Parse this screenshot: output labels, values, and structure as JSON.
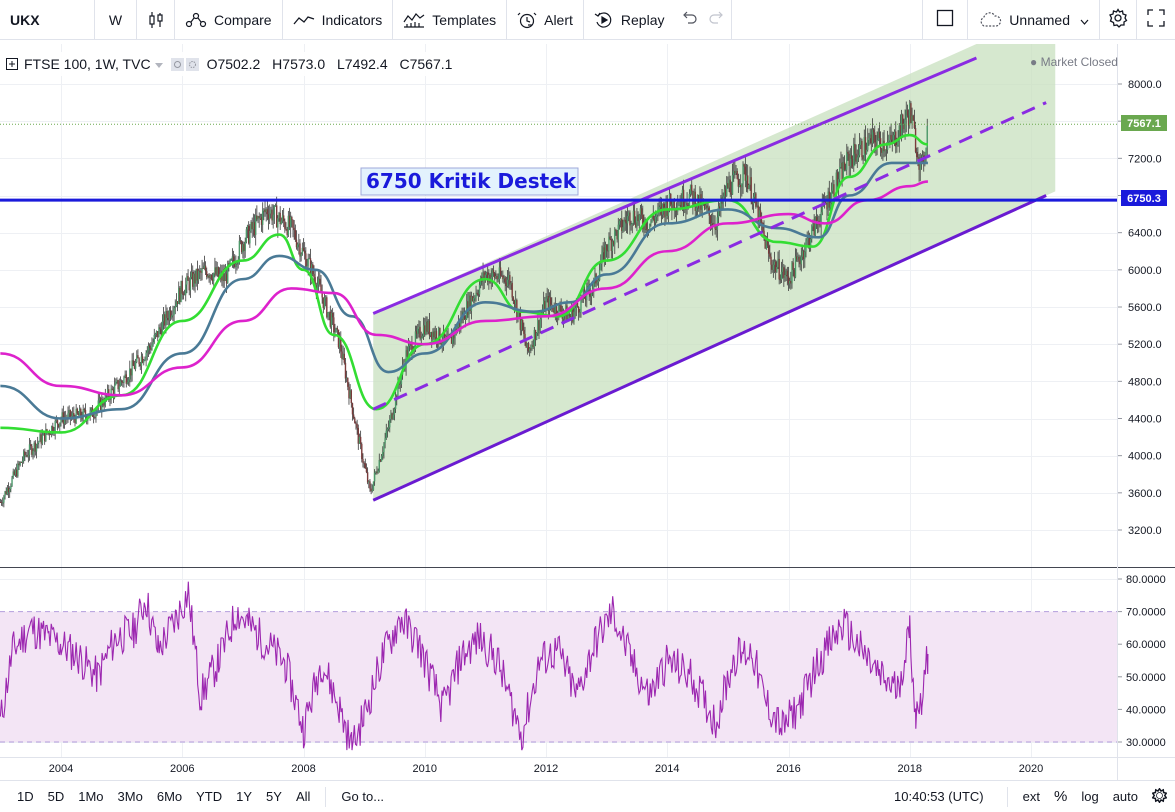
{
  "toolbar": {
    "symbol": "UKX",
    "interval": "W",
    "compare": "Compare",
    "indicators": "Indicators",
    "templates": "Templates",
    "alert": "Alert",
    "replay": "Replay",
    "layout_name": "Unnamed"
  },
  "legend": {
    "title": "FTSE 100, 1W, TVC",
    "open": "O7502.2",
    "high": "H7573.0",
    "low": "L7492.4",
    "close": "C7567.1"
  },
  "market_status": "Market Closed",
  "annotation": {
    "text": "6750 Kritik Destek",
    "color": "#1a1adb"
  },
  "price_labels": {
    "last": "7567.1",
    "support": "6750.3"
  },
  "bottombar": {
    "ranges": [
      "1D",
      "5D",
      "1Mo",
      "3Mo",
      "6Mo",
      "YTD",
      "1Y",
      "5Y",
      "All"
    ],
    "goto": "Go to...",
    "clock": "10:40:53 (UTC)",
    "ext": "ext",
    "percent": "%",
    "log": "log",
    "auto": "auto"
  },
  "colors": {
    "channel": "#8a2be2",
    "channel_fill": "#c8e0bf",
    "support_line": "#1a1adb",
    "ma_fast": "#33dd33",
    "ma_mid": "#4a7a96",
    "ma_slow": "#dd22cc",
    "rsi_line": "#9c27b0",
    "rsi_band": "#f3e5f5"
  },
  "chart_data": [
    {
      "type": "candlestick",
      "title": "FTSE 100, 1W, TVC",
      "x_ticks": [
        "2004",
        "2006",
        "2008",
        "2010",
        "2012",
        "2014",
        "2016",
        "2018",
        "2020"
      ],
      "y_ticks": [
        3200,
        3600,
        4000,
        4400,
        4800,
        5200,
        5600,
        6000,
        6400,
        6800,
        7200,
        7600,
        8000
      ],
      "ylim": [
        2900,
        8280
      ],
      "xlim": [
        2003.0,
        2021.5
      ],
      "price_path": [
        [
          2003.0,
          3500
        ],
        [
          2003.4,
          4000
        ],
        [
          2004.0,
          4400
        ],
        [
          2004.5,
          4450
        ],
        [
          2005.0,
          4800
        ],
        [
          2005.5,
          5200
        ],
        [
          2006.0,
          5800
        ],
        [
          2006.4,
          6000
        ],
        [
          2006.7,
          5900
        ],
        [
          2007.0,
          6300
        ],
        [
          2007.4,
          6650
        ],
        [
          2007.8,
          6450
        ],
        [
          2008.2,
          5900
        ],
        [
          2008.6,
          5200
        ],
        [
          2008.9,
          4200
        ],
        [
          2009.1,
          3600
        ],
        [
          2009.4,
          4300
        ],
        [
          2009.7,
          5100
        ],
        [
          2010.0,
          5400
        ],
        [
          2010.4,
          5200
        ],
        [
          2010.7,
          5600
        ],
        [
          2011.0,
          5950
        ],
        [
          2011.4,
          5900
        ],
        [
          2011.7,
          5100
        ],
        [
          2012.0,
          5650
        ],
        [
          2012.4,
          5500
        ],
        [
          2012.8,
          5850
        ],
        [
          2013.0,
          6250
        ],
        [
          2013.4,
          6600
        ],
        [
          2013.7,
          6500
        ],
        [
          2014.0,
          6700
        ],
        [
          2014.4,
          6800
        ],
        [
          2014.8,
          6500
        ],
        [
          2015.0,
          6900
        ],
        [
          2015.3,
          7050
        ],
        [
          2015.7,
          6100
        ],
        [
          2016.0,
          5900
        ],
        [
          2016.2,
          6150
        ],
        [
          2016.6,
          6700
        ],
        [
          2017.0,
          7200
        ],
        [
          2017.4,
          7400
        ],
        [
          2017.7,
          7350
        ],
        [
          2018.0,
          7700
        ],
        [
          2018.2,
          7050
        ],
        [
          2018.3,
          7567
        ]
      ],
      "moving_averages": [
        {
          "points": [
            [
              2003.0,
              4300
            ],
            [
              2004.0,
              4250
            ],
            [
              2005.0,
              4650
            ],
            [
              2006.0,
              5450
            ],
            [
              2007.0,
              6100
            ],
            [
              2007.6,
              6380
            ],
            [
              2008.0,
              6000
            ],
            [
              2008.5,
              5300
            ],
            [
              2009.2,
              4500
            ],
            [
              2010.0,
              5200
            ],
            [
              2011.0,
              5900
            ],
            [
              2011.6,
              5550
            ],
            [
              2012.2,
              5500
            ],
            [
              2013.0,
              6100
            ],
            [
              2014.0,
              6650
            ],
            [
              2015.0,
              6750
            ],
            [
              2015.8,
              6300
            ],
            [
              2016.4,
              6250
            ],
            [
              2017.0,
              7000
            ],
            [
              2017.6,
              7350
            ],
            [
              2018.0,
              7450
            ],
            [
              2018.3,
              7350
            ]
          ]
        },
        {
          "points": [
            [
              2003.0,
              4750
            ],
            [
              2004.0,
              4400
            ],
            [
              2005.0,
              4500
            ],
            [
              2006.0,
              5100
            ],
            [
              2007.0,
              5900
            ],
            [
              2007.6,
              6150
            ],
            [
              2008.2,
              6000
            ],
            [
              2008.8,
              5500
            ],
            [
              2009.4,
              4900
            ],
            [
              2010.0,
              5100
            ],
            [
              2011.0,
              5650
            ],
            [
              2011.8,
              5550
            ],
            [
              2012.4,
              5650
            ],
            [
              2013.0,
              5950
            ],
            [
              2014.0,
              6500
            ],
            [
              2015.0,
              6650
            ],
            [
              2015.8,
              6450
            ],
            [
              2016.5,
              6350
            ],
            [
              2017.0,
              6800
            ],
            [
              2017.7,
              7150
            ],
            [
              2018.3,
              7150
            ]
          ]
        },
        {
          "points": [
            [
              2003.0,
              5100
            ],
            [
              2004.0,
              4750
            ],
            [
              2005.0,
              4650
            ],
            [
              2006.0,
              4950
            ],
            [
              2007.0,
              5450
            ],
            [
              2007.8,
              5800
            ],
            [
              2008.5,
              5750
            ],
            [
              2009.2,
              5300
            ],
            [
              2010.0,
              5200
            ],
            [
              2011.0,
              5450
            ],
            [
              2012.0,
              5500
            ],
            [
              2013.0,
              5800
            ],
            [
              2014.0,
              6200
            ],
            [
              2015.0,
              6500
            ],
            [
              2016.0,
              6600
            ],
            [
              2016.6,
              6500
            ],
            [
              2017.3,
              6750
            ],
            [
              2018.0,
              6900
            ],
            [
              2018.3,
              6950
            ]
          ]
        }
      ],
      "channel": {
        "upper": [
          [
            2009.15,
            5530
          ],
          [
            2019.1,
            8280
          ]
        ],
        "middle": [
          [
            2009.15,
            4500
          ],
          [
            2020.25,
            7800
          ]
        ],
        "lower": [
          [
            2009.15,
            3520
          ],
          [
            2020.25,
            6800
          ]
        ]
      },
      "support_level": 6750.3,
      "last_price": 7567.1
    },
    {
      "type": "line",
      "y_ticks": [
        "30.0000",
        "40.0000",
        "50.0000",
        "60.0000",
        "70.0000",
        "80.0000"
      ],
      "ylim": [
        26.9,
        81.2
      ],
      "band": [
        30,
        70
      ],
      "points": [
        [
          2003.0,
          36
        ],
        [
          2003.2,
          58
        ],
        [
          2003.5,
          65
        ],
        [
          2003.8,
          62
        ],
        [
          2004.0,
          60
        ],
        [
          2004.3,
          56
        ],
        [
          2004.6,
          50
        ],
        [
          2004.9,
          62
        ],
        [
          2005.2,
          64
        ],
        [
          2005.4,
          74
        ],
        [
          2005.6,
          58
        ],
        [
          2005.9,
          68
        ],
        [
          2006.1,
          76
        ],
        [
          2006.3,
          44
        ],
        [
          2006.6,
          55
        ],
        [
          2006.9,
          70
        ],
        [
          2007.1,
          66
        ],
        [
          2007.4,
          60
        ],
        [
          2007.7,
          54
        ],
        [
          2008.0,
          34
        ],
        [
          2008.3,
          55
        ],
        [
          2008.6,
          40
        ],
        [
          2008.8,
          28
        ],
        [
          2009.0,
          38
        ],
        [
          2009.3,
          56
        ],
        [
          2009.6,
          68
        ],
        [
          2009.9,
          60
        ],
        [
          2010.3,
          40
        ],
        [
          2010.6,
          56
        ],
        [
          2010.9,
          62
        ],
        [
          2011.2,
          55
        ],
        [
          2011.6,
          32
        ],
        [
          2011.9,
          55
        ],
        [
          2012.2,
          58
        ],
        [
          2012.5,
          44
        ],
        [
          2012.8,
          60
        ],
        [
          2013.1,
          70
        ],
        [
          2013.4,
          55
        ],
        [
          2013.7,
          44
        ],
        [
          2014.0,
          55
        ],
        [
          2014.4,
          50
        ],
        [
          2014.8,
          36
        ],
        [
          2015.1,
          56
        ],
        [
          2015.4,
          58
        ],
        [
          2015.6,
          43
        ],
        [
          2015.9,
          34
        ],
        [
          2016.2,
          42
        ],
        [
          2016.5,
          55
        ],
        [
          2016.9,
          66
        ],
        [
          2017.2,
          58
        ],
        [
          2017.5,
          50
        ],
        [
          2017.8,
          46
        ],
        [
          2018.0,
          64
        ],
        [
          2018.1,
          38
        ],
        [
          2018.2,
          44
        ],
        [
          2018.3,
          57
        ]
      ]
    }
  ]
}
